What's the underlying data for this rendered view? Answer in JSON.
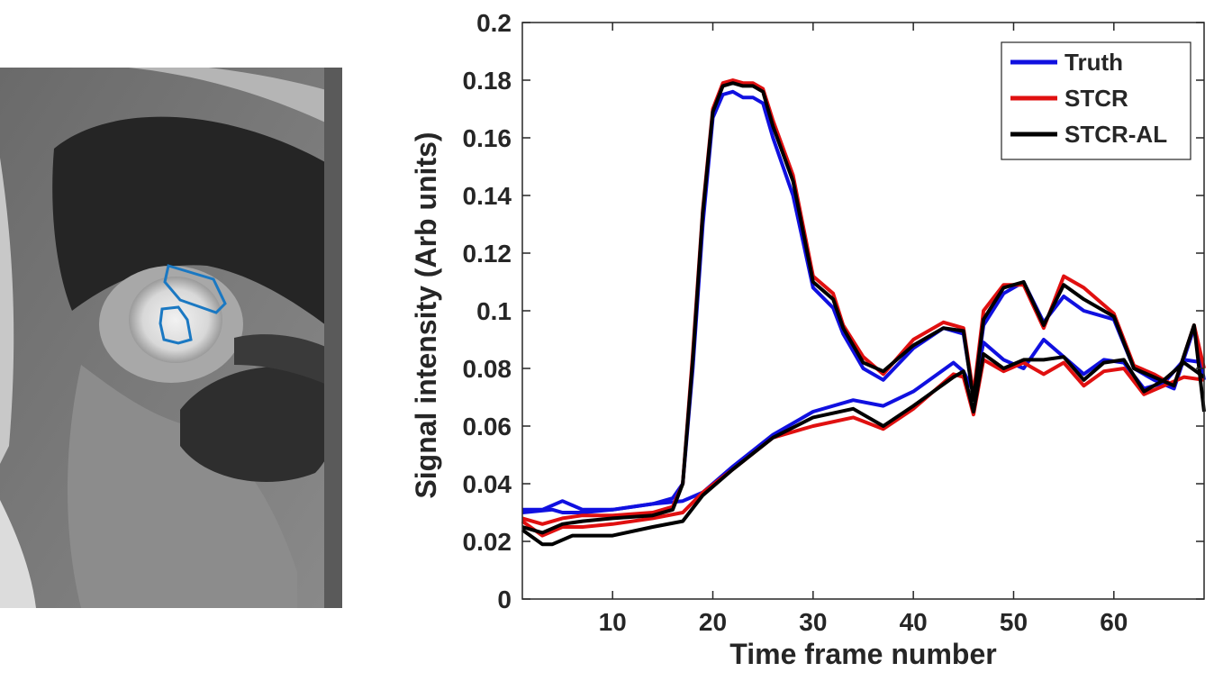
{
  "figure": {
    "left_panel": "mri-image",
    "roi_color": "#1a78c2"
  },
  "chart_data": {
    "type": "line",
    "xlabel": "Time frame number",
    "ylabel": "Signal intensity (Arb units)",
    "xlim": [
      1,
      69
    ],
    "ylim": [
      0,
      0.2
    ],
    "xticks": [
      10,
      20,
      30,
      40,
      50,
      60
    ],
    "yticks": [
      0,
      0.02,
      0.04,
      0.06,
      0.08,
      0.1,
      0.12,
      0.14,
      0.16,
      0.18,
      0.2
    ],
    "ytick_labels": [
      "0",
      "0.02",
      "0.04",
      "0.06",
      "0.08",
      "0.1",
      "0.12",
      "0.14",
      "0.16",
      "0.18",
      "0.2"
    ],
    "grid": false,
    "legend_position": "top-right",
    "legend": [
      "Truth",
      "STCR",
      "STCR-AL"
    ],
    "colors": {
      "Truth": "#1010e0",
      "STCR": "#e01010",
      "STCR-AL": "#000000"
    },
    "series": [
      {
        "name": "Truth",
        "group": "blood-pool",
        "x": [
          1,
          3,
          5,
          7,
          10,
          14,
          16,
          17,
          18,
          19,
          20,
          21,
          22,
          23,
          24,
          25,
          26,
          28,
          30,
          32,
          33,
          35,
          37,
          40,
          43,
          45,
          46,
          47,
          49,
          51,
          53,
          55,
          57,
          60,
          62,
          64,
          66,
          68,
          69
        ],
        "y": [
          0.031,
          0.031,
          0.034,
          0.031,
          0.031,
          0.033,
          0.035,
          0.04,
          0.08,
          0.13,
          0.167,
          0.175,
          0.176,
          0.174,
          0.174,
          0.172,
          0.16,
          0.14,
          0.108,
          0.101,
          0.092,
          0.08,
          0.076,
          0.087,
          0.094,
          0.092,
          0.07,
          0.095,
          0.106,
          0.11,
          0.096,
          0.105,
          0.1,
          0.097,
          0.08,
          0.076,
          0.073,
          0.094,
          0.076
        ]
      },
      {
        "name": "STCR",
        "group": "blood-pool",
        "x": [
          1,
          3,
          5,
          7,
          10,
          14,
          16,
          17,
          18,
          19,
          20,
          21,
          22,
          23,
          24,
          25,
          26,
          28,
          30,
          32,
          33,
          35,
          37,
          40,
          43,
          45,
          46,
          47,
          49,
          51,
          53,
          55,
          57,
          60,
          62,
          64,
          66,
          68,
          69
        ],
        "y": [
          0.028,
          0.026,
          0.028,
          0.029,
          0.029,
          0.03,
          0.032,
          0.04,
          0.085,
          0.135,
          0.17,
          0.179,
          0.18,
          0.179,
          0.179,
          0.177,
          0.166,
          0.147,
          0.112,
          0.106,
          0.095,
          0.084,
          0.078,
          0.09,
          0.096,
          0.094,
          0.071,
          0.1,
          0.109,
          0.109,
          0.094,
          0.112,
          0.108,
          0.099,
          0.081,
          0.078,
          0.074,
          0.095,
          0.08
        ]
      },
      {
        "name": "STCR-AL",
        "group": "blood-pool",
        "x": [
          1,
          3,
          5,
          7,
          10,
          14,
          16,
          17,
          18,
          19,
          20,
          21,
          22,
          23,
          24,
          25,
          26,
          28,
          30,
          32,
          33,
          35,
          37,
          40,
          43,
          45,
          46,
          47,
          49,
          51,
          53,
          55,
          57,
          60,
          62,
          64,
          66,
          68,
          69
        ],
        "y": [
          0.025,
          0.023,
          0.026,
          0.027,
          0.028,
          0.029,
          0.031,
          0.04,
          0.083,
          0.134,
          0.169,
          0.178,
          0.179,
          0.178,
          0.178,
          0.176,
          0.164,
          0.145,
          0.11,
          0.104,
          0.094,
          0.082,
          0.079,
          0.088,
          0.094,
          0.093,
          0.069,
          0.097,
          0.108,
          0.11,
          0.095,
          0.109,
          0.104,
          0.098,
          0.08,
          0.077,
          0.074,
          0.095,
          0.065
        ]
      },
      {
        "name": "Truth",
        "group": "myocardium",
        "x": [
          1,
          4,
          5,
          7,
          10,
          14,
          17,
          19,
          22,
          26,
          30,
          34,
          37,
          40,
          44,
          45,
          46,
          47,
          49,
          51,
          53,
          55,
          57,
          59,
          61,
          63,
          65,
          67,
          69
        ],
        "y": [
          0.03,
          0.031,
          0.03,
          0.03,
          0.031,
          0.033,
          0.034,
          0.037,
          0.046,
          0.057,
          0.065,
          0.069,
          0.067,
          0.072,
          0.082,
          0.079,
          0.072,
          0.089,
          0.083,
          0.08,
          0.09,
          0.084,
          0.078,
          0.083,
          0.082,
          0.073,
          0.075,
          0.083,
          0.082
        ]
      },
      {
        "name": "STCR",
        "group": "myocardium",
        "x": [
          1,
          3,
          5,
          7,
          10,
          14,
          17,
          19,
          22,
          26,
          30,
          34,
          37,
          40,
          44,
          45,
          46,
          47,
          49,
          51,
          53,
          55,
          57,
          59,
          61,
          63,
          65,
          67,
          69
        ],
        "y": [
          0.027,
          0.022,
          0.025,
          0.025,
          0.026,
          0.028,
          0.03,
          0.037,
          0.045,
          0.056,
          0.06,
          0.063,
          0.059,
          0.066,
          0.078,
          0.077,
          0.064,
          0.083,
          0.079,
          0.082,
          0.078,
          0.082,
          0.074,
          0.079,
          0.08,
          0.071,
          0.074,
          0.077,
          0.076
        ]
      },
      {
        "name": "STCR-AL",
        "group": "myocardium",
        "x": [
          1,
          3,
          4,
          6,
          10,
          14,
          17,
          19,
          22,
          26,
          30,
          34,
          37,
          40,
          44,
          45,
          46,
          47,
          49,
          51,
          53,
          55,
          57,
          59,
          61,
          63,
          65,
          67,
          69
        ],
        "y": [
          0.024,
          0.019,
          0.019,
          0.022,
          0.022,
          0.025,
          0.027,
          0.036,
          0.045,
          0.056,
          0.063,
          0.066,
          0.06,
          0.067,
          0.077,
          0.079,
          0.065,
          0.085,
          0.08,
          0.083,
          0.083,
          0.084,
          0.076,
          0.082,
          0.083,
          0.072,
          0.076,
          0.082,
          0.077
        ]
      }
    ]
  }
}
